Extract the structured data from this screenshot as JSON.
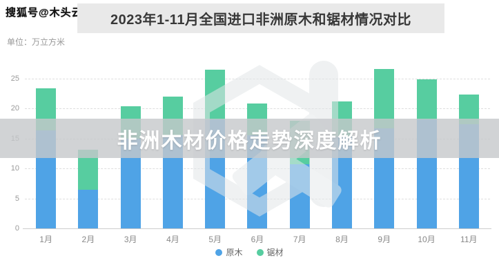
{
  "watermark": {
    "account": "搜狐号@木头云",
    "headline": "非洲木材价格走势深度解析"
  },
  "header": {
    "title": "2023年1-11月全国进口非洲原木和锯材情况对比",
    "unit": "单位：万立方米"
  },
  "chart_data": {
    "type": "bar",
    "stacked": true,
    "title": "2023年1-11月全国进口非洲原木和锯材情况对比",
    "ylabel": "万立方米",
    "categories": [
      "1月",
      "2月",
      "3月",
      "4月",
      "5月",
      "6月",
      "7月",
      "8月",
      "9月",
      "10月",
      "11月"
    ],
    "series": [
      {
        "name": "原木",
        "color": "#4fa3e6",
        "values": [
          16.3,
          6.4,
          15.0,
          15.5,
          18.2,
          15.5,
          10.7,
          15.3,
          16.7,
          18.2,
          17.4
        ]
      },
      {
        "name": "锯材",
        "color": "#57cda0",
        "values": [
          7.0,
          6.7,
          5.3,
          6.5,
          8.2,
          5.3,
          7.2,
          5.9,
          9.9,
          6.6,
          4.9
        ]
      }
    ],
    "totals": [
      23.3,
      13.1,
      20.3,
      22.0,
      26.4,
      20.8,
      17.9,
      21.2,
      26.6,
      24.8,
      22.3
    ],
    "ylim": [
      0,
      27.7
    ],
    "yticks": [
      0,
      5,
      10,
      15,
      20,
      25
    ],
    "grid": true,
    "grid_style": "dashed",
    "legend_position": "bottom"
  },
  "colors": {
    "log_blue": "#4fa3e6",
    "sawn_green": "#57cda0",
    "overlay_gray": "rgba(198,200,202,0.80)",
    "title_band": "#e9e9e9",
    "axis_text": "#999999"
  }
}
